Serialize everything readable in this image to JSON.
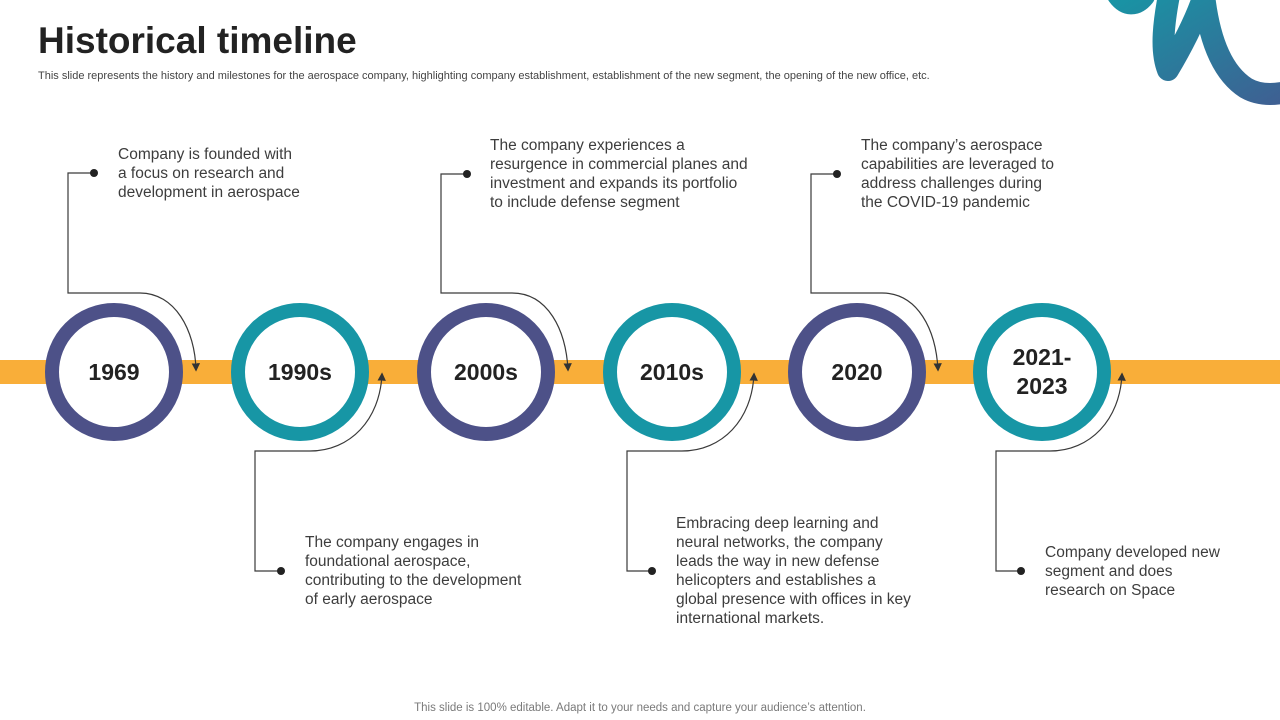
{
  "header": {
    "title": "Historical timeline",
    "subtitle": "This slide represents the history and milestones for the aerospace company, highlighting company establishment, establishment of the new segment, the opening of the new office, etc."
  },
  "timeline": {
    "band_color": "#F9AE39",
    "ring_colors": {
      "purple": "#4D5188",
      "teal": "#1796A5"
    },
    "milestones": [
      {
        "year": "1969",
        "ring": "purple",
        "description": "Company is founded with\na focus on research and\ndevelopment in aerospace"
      },
      {
        "year": "1990s",
        "ring": "teal",
        "description": "The company engages in\nfoundational aerospace,\ncontributing to the development\nof early aerospace"
      },
      {
        "year": "2000s",
        "ring": "purple",
        "description": "The company experiences a\nresurgence in commercial planes and\ninvestment and expands its portfolio\nto include defense segment"
      },
      {
        "year": "2010s",
        "ring": "teal",
        "description": "Embracing deep learning and\nneural networks, the company\nleads the way in new defense\nhelicopters and establishes a\nglobal presence with offices in key\ninternational markets."
      },
      {
        "year": "2020",
        "ring": "purple",
        "description": "The company’s aerospace\ncapabilities are leveraged to\naddress challenges during\nthe COVID-19 pandemic"
      },
      {
        "year": "2021-\n2023",
        "ring": "teal",
        "description": "Company developed new\nsegment and does\nresearch on Space"
      }
    ]
  },
  "footer": {
    "text": "This slide is 100% editable. Adapt it to your needs and capture your audience’s attention."
  }
}
